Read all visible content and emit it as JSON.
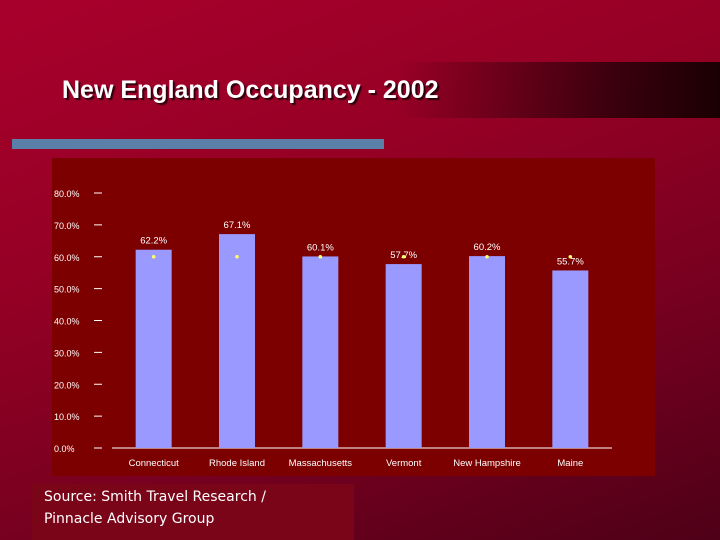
{
  "slide": {
    "title": "New England Occupancy - 2002",
    "source_line_1": "Source: Smith Travel Research /",
    "source_line_2": "Pinnacle Advisory Group"
  },
  "colors": {
    "background": "#9a0026",
    "accent_bar": "#5a7fa8",
    "chart_background": "#7c0000",
    "bar_fill": "#9999ff",
    "marker": "#ffff66",
    "text": "#ffffff"
  },
  "chart_data": {
    "type": "bar",
    "title": "",
    "xlabel": "",
    "ylabel": "",
    "ylim": [
      0,
      80
    ],
    "yticks": [
      0,
      10,
      20,
      30,
      40,
      50,
      60,
      70,
      80
    ],
    "ytick_labels": [
      "0.0%",
      "10.0%",
      "20.0%",
      "30.0%",
      "40.0%",
      "50.0%",
      "60.0%",
      "70.0%",
      "80.0%"
    ],
    "grid": false,
    "categories": [
      "Connecticut",
      "Rhode Island",
      "Massachusetts",
      "Vermont",
      "New Hampshire",
      "Maine"
    ],
    "values": [
      62.2,
      67.1,
      60.1,
      57.7,
      60.2,
      55.7
    ],
    "data_labels": [
      "62.2%",
      "67.1%",
      "60.1%",
      "57.7%",
      "60.2%",
      "55.7%"
    ],
    "marker_values": [
      60,
      60,
      60,
      60,
      60,
      60
    ]
  }
}
